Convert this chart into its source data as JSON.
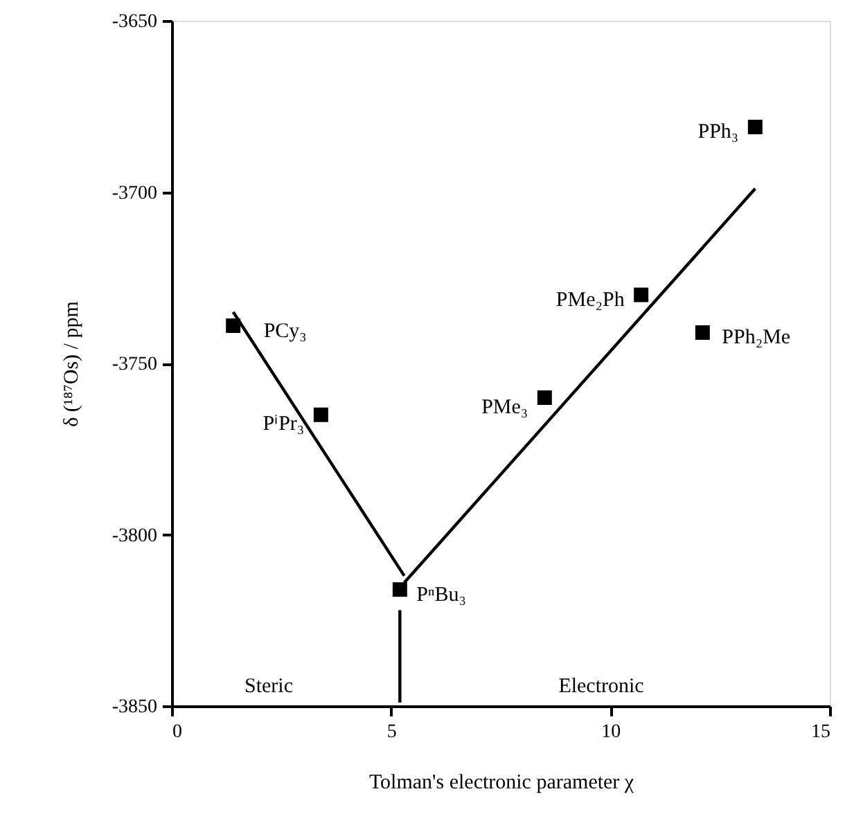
{
  "chart_data": {
    "type": "scatter",
    "xlabel": "Tolman's electronic parameter χ",
    "ylabel": "δ (¹⁸⁷Os) / ppm",
    "xlim": [
      0,
      15
    ],
    "xticks": [
      0,
      5,
      10,
      15
    ],
    "ylim": [
      -3850,
      -3650
    ],
    "yticks": [
      -3850,
      -3800,
      -3750,
      -3700,
      -3650
    ],
    "grid": false,
    "series": [
      {
        "color": "#000000",
        "marker": "square",
        "x": [
          1.4,
          3.4,
          5.2,
          8.5,
          10.7,
          12.1,
          13.3
        ],
        "values": [
          -3739,
          -3765,
          -3816,
          -3760,
          -3730,
          -3741,
          -3681
        ]
      },
      {
        "type": "line",
        "color": "#000000",
        "marker": "none",
        "line_style": "solid",
        "x": [
          1.4,
          5.3
        ],
        "values": [
          -3735,
          -3812
        ]
      },
      {
        "type": "line",
        "color": "#000000",
        "marker": "none",
        "line_style": "solid",
        "x": [
          5.3,
          13.3
        ],
        "values": [
          -3814,
          -3699
        ]
      },
      {
        "type": "line",
        "color": "#000000",
        "marker": "none",
        "line_style": "solid",
        "x": [
          5.2,
          5.2
        ],
        "values": [
          -3822,
          -3849
        ]
      }
    ],
    "annotations": [
      {
        "text": "PCy₃",
        "x": 1.4,
        "y": -3739
      },
      {
        "text": "PⁱPr₃",
        "x": 3.4,
        "y": -3765
      },
      {
        "text": "PⁿBu₃",
        "x": 5.2,
        "y": -3816
      },
      {
        "text": "PMe₃",
        "x": 8.5,
        "y": -3760
      },
      {
        "text": "PMe₂Ph",
        "x": 10.7,
        "y": -3730
      },
      {
        "text": "PPh₂Me",
        "x": 12.1,
        "y": -3741
      },
      {
        "text": "PPh₃",
        "x": 13.3,
        "y": -3681
      },
      "Steric",
      "Electronic"
    ]
  }
}
